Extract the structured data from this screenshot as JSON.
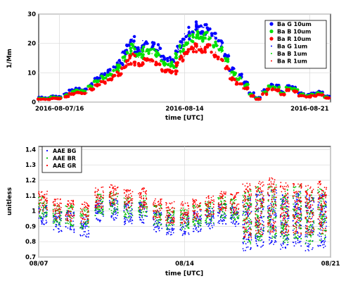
{
  "chart_data": [
    {
      "type": "scatter",
      "title": "",
      "xlabel": "time [UTC]",
      "ylabel": "1/Mm",
      "ylim": [
        0,
        30
      ],
      "xlim": [
        0,
        14
      ],
      "yticks": [
        0,
        10,
        20,
        30
      ],
      "ytick_labels": [
        "0",
        "10",
        "20",
        "30"
      ],
      "xticks": [
        1,
        7,
        13
      ],
      "xtick_labels": [
        "2016-08-07/16",
        "2016-08-14",
        "2016-08-21"
      ],
      "grid": true,
      "legend_position": "top-right",
      "series": [
        {
          "name": "Ba G 10um",
          "color": "#0000ff",
          "marker": "dot",
          "x": [
            0.1,
            0.4,
            0.7,
            1.0,
            1.3,
            1.6,
            1.9,
            2.2,
            2.5,
            2.8,
            3.1,
            3.4,
            3.7,
            3.9,
            4.1,
            4.3,
            4.5,
            4.7,
            4.9,
            5.1,
            5.4,
            5.7,
            6.0,
            6.3,
            6.5,
            6.7,
            6.9,
            7.1,
            7.3,
            7.5,
            7.7,
            7.9,
            8.1,
            8.4,
            8.7,
            9.0,
            9.3,
            9.6,
            9.9,
            10.2,
            10.5,
            10.8,
            11.1,
            11.4,
            11.7,
            12.0,
            12.3,
            12.6,
            12.9,
            13.2,
            13.5,
            13.8
          ],
          "y": [
            1.6,
            1.4,
            2.0,
            1.8,
            2.8,
            4.0,
            4.5,
            4.2,
            6.0,
            8.0,
            9.5,
            10.5,
            12.0,
            13.5,
            16.5,
            18.5,
            21.5,
            18.0,
            17.5,
            20.0,
            19.5,
            18.5,
            15.0,
            14.5,
            14.0,
            18.0,
            20.5,
            22.5,
            24.5,
            26.0,
            25.0,
            24.5,
            25.5,
            22.5,
            20.0,
            16.0,
            11.0,
            9.0,
            6.5,
            3.0,
            1.5,
            4.0,
            6.0,
            5.5,
            3.5,
            5.5,
            5.0,
            3.0,
            2.5,
            3.0,
            3.5,
            2.0
          ]
        },
        {
          "name": "Ba B 10um",
          "color": "#00e000",
          "marker": "dot",
          "x": [
            0.1,
            0.4,
            0.7,
            1.0,
            1.3,
            1.6,
            1.9,
            2.2,
            2.5,
            2.8,
            3.1,
            3.4,
            3.7,
            3.9,
            4.1,
            4.3,
            4.5,
            4.7,
            4.9,
            5.1,
            5.4,
            5.7,
            6.0,
            6.3,
            6.5,
            6.7,
            6.9,
            7.1,
            7.3,
            7.5,
            7.7,
            7.9,
            8.1,
            8.4,
            8.7,
            9.0,
            9.3,
            9.6,
            9.9,
            10.2,
            10.5,
            10.8,
            11.1,
            11.4,
            11.7,
            12.0,
            12.3,
            12.6,
            12.9,
            13.2,
            13.5,
            13.8
          ],
          "y": [
            1.3,
            1.1,
            1.7,
            1.5,
            2.4,
            3.5,
            3.9,
            3.7,
            5.3,
            7.0,
            8.4,
            9.3,
            10.7,
            12.0,
            14.7,
            16.5,
            19.2,
            16.0,
            15.6,
            17.8,
            17.4,
            16.5,
            13.4,
            12.9,
            12.5,
            16.0,
            18.3,
            20.0,
            21.8,
            23.1,
            22.3,
            21.8,
            22.7,
            20.0,
            17.8,
            14.2,
            9.8,
            8.0,
            5.8,
            2.6,
            1.3,
            3.5,
            5.3,
            4.9,
            3.1,
            4.9,
            4.4,
            2.6,
            2.2,
            2.6,
            3.1,
            1.7
          ]
        },
        {
          "name": "Ba R 10um",
          "color": "#ff0000",
          "marker": "dot",
          "x": [
            0.1,
            0.4,
            0.7,
            1.0,
            1.3,
            1.6,
            1.9,
            2.2,
            2.5,
            2.8,
            3.1,
            3.4,
            3.7,
            3.9,
            4.1,
            4.3,
            4.5,
            4.7,
            4.9,
            5.1,
            5.4,
            5.7,
            6.0,
            6.3,
            6.5,
            6.7,
            6.9,
            7.1,
            7.3,
            7.5,
            7.7,
            7.9,
            8.1,
            8.4,
            8.7,
            9.0,
            9.3,
            9.6,
            9.9,
            10.2,
            10.5,
            10.8,
            11.1,
            11.4,
            11.7,
            12.0,
            12.3,
            12.6,
            12.9,
            13.2,
            13.5,
            13.8
          ],
          "y": [
            1.0,
            0.9,
            1.3,
            1.2,
            1.9,
            2.8,
            3.2,
            3.0,
            4.3,
            5.7,
            6.8,
            7.6,
            8.7,
            9.8,
            12.0,
            13.4,
            15.6,
            13.0,
            12.7,
            14.5,
            14.2,
            13.4,
            10.9,
            10.5,
            10.2,
            13.0,
            14.9,
            16.3,
            17.8,
            18.8,
            18.1,
            17.8,
            18.5,
            16.3,
            14.5,
            11.6,
            8.0,
            6.5,
            4.7,
            2.1,
            1.0,
            2.8,
            4.3,
            4.0,
            2.5,
            4.0,
            3.6,
            2.1,
            1.8,
            2.1,
            2.5,
            1.4
          ]
        },
        {
          "name": "Ba G 1um",
          "color": "#0000ff",
          "marker": "small"
        },
        {
          "name": "Ba B 1um",
          "color": "#00e000",
          "marker": "small"
        },
        {
          "name": "Ba R 1um",
          "color": "#ff0000",
          "marker": "small"
        }
      ]
    },
    {
      "type": "scatter",
      "title": "",
      "xlabel": "time [UTC]",
      "ylabel": "unitless",
      "ylim": [
        0.7,
        1.42
      ],
      "xlim": [
        0,
        14
      ],
      "yticks": [
        0.7,
        0.8,
        0.9,
        1.0,
        1.1,
        1.2,
        1.3,
        1.4
      ],
      "ytick_labels": [
        "0.7",
        "0.8",
        "0.9",
        "1",
        "1.1",
        "1.2",
        "1.3",
        "1.4"
      ],
      "xticks": [
        0,
        7,
        14
      ],
      "xtick_labels": [
        "08/07",
        "08/14",
        "08/21"
      ],
      "grid": true,
      "legend_position": "top-left",
      "series": [
        {
          "name": "AAE BG",
          "color": "#0000ff",
          "x": [
            0.2,
            0.9,
            1.5,
            2.2,
            2.9,
            3.6,
            4.3,
            5.0,
            5.7,
            6.3,
            7.0,
            7.6,
            8.2,
            8.8,
            9.4,
            10.0,
            10.6,
            11.2,
            11.8,
            12.4,
            13.0,
            13.6
          ],
          "y": [
            0.97,
            0.93,
            0.93,
            0.9,
            1.0,
            1.01,
            0.98,
            0.99,
            0.93,
            0.91,
            0.91,
            0.93,
            0.95,
            0.98,
            0.97,
            0.92,
            0.94,
            0.96,
            0.93,
            0.95,
            0.92,
            0.94
          ]
        },
        {
          "name": "AAE BR",
          "color": "#00c000",
          "x": [
            0.2,
            0.9,
            1.5,
            2.2,
            2.9,
            3.6,
            4.3,
            5.0,
            5.7,
            6.3,
            7.0,
            7.6,
            8.2,
            8.8,
            9.4,
            10.0,
            10.6,
            11.2,
            11.8,
            12.4,
            13.0,
            13.6
          ],
          "y": [
            1.02,
            0.97,
            0.97,
            0.95,
            1.04,
            1.05,
            1.02,
            1.03,
            0.97,
            0.95,
            0.95,
            0.97,
            0.99,
            1.02,
            1.01,
            0.96,
            0.98,
            1.0,
            0.97,
            0.99,
            0.96,
            0.98
          ]
        },
        {
          "name": "AAE GR",
          "color": "#ff0000",
          "x": [
            0.2,
            0.9,
            1.5,
            2.2,
            2.9,
            3.6,
            4.3,
            5.0,
            5.7,
            6.3,
            7.0,
            7.6,
            8.2,
            8.8,
            9.4,
            10.0,
            10.6,
            11.2,
            11.8,
            12.4,
            13.0,
            13.6
          ],
          "y": [
            1.06,
            1.01,
            1.0,
            0.99,
            1.09,
            1.1,
            1.07,
            1.08,
            1.01,
            0.99,
            0.99,
            1.01,
            1.03,
            1.06,
            1.05,
            1.0,
            1.02,
            1.04,
            1.01,
            1.03,
            1.0,
            1.02
          ]
        }
      ]
    }
  ]
}
